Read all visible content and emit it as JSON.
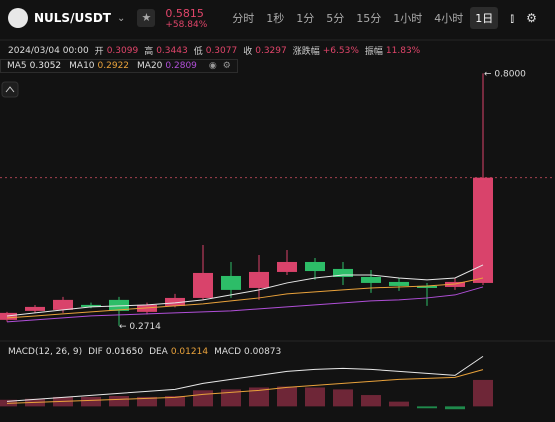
{
  "header": {
    "pair": "NULS/USDT",
    "price": 0.5815,
    "change": "+58.84%",
    "intervals": [
      "分时",
      "1秒",
      "1分",
      "5分",
      "15分",
      "1小时",
      "4小时",
      "1日"
    ],
    "active_interval": 7
  },
  "ohlc_row": {
    "date": "2024/03/04 00:00",
    "items": [
      {
        "label": "开",
        "value": 0.3099
      },
      {
        "label": "高",
        "value": 0.3443
      },
      {
        "label": "低",
        "value": 0.3077
      },
      {
        "label": "收",
        "value": 0.3297
      },
      {
        "label": "涨跌幅",
        "value": "+6.53%"
      },
      {
        "label": "振幅",
        "value": "11.83%"
      }
    ]
  },
  "chart_data": [
    {
      "type": "candlestick",
      "up_color": "#d9436b",
      "down_color": "#2dbd68",
      "ylim": [
        0.25,
        0.83
      ],
      "candles": [
        {
          "open": 0.2838,
          "high": 0.3005,
          "low": 0.28,
          "close": 0.2984
        },
        {
          "open": 0.3026,
          "high": 0.315,
          "low": 0.298,
          "close": 0.3109
        },
        {
          "open": 0.3047,
          "high": 0.3318,
          "low": 0.2984,
          "close": 0.3256
        },
        {
          "open": 0.3151,
          "high": 0.32,
          "low": 0.308,
          "close": 0.3109
        },
        {
          "open": 0.3256,
          "high": 0.3318,
          "low": 0.2714,
          "close": 0.3026
        },
        {
          "open": 0.3005,
          "high": 0.32,
          "low": 0.295,
          "close": 0.3151
        },
        {
          "open": 0.313,
          "high": 0.3381,
          "low": 0.31,
          "close": 0.3297
        },
        {
          "open": 0.3297,
          "high": 0.4405,
          "low": 0.3256,
          "close": 0.382
        },
        {
          "open": 0.3757,
          "high": 0.405,
          "low": 0.3297,
          "close": 0.3465
        },
        {
          "open": 0.3506,
          "high": 0.4196,
          "low": 0.3256,
          "close": 0.3841
        },
        {
          "open": 0.3841,
          "high": 0.4301,
          "low": 0.3778,
          "close": 0.405
        },
        {
          "open": 0.405,
          "high": 0.4133,
          "low": 0.3674,
          "close": 0.386
        },
        {
          "open": 0.3904,
          "high": 0.405,
          "low": 0.3569,
          "close": 0.3736
        },
        {
          "open": 0.3736,
          "high": 0.3883,
          "low": 0.3402,
          "close": 0.3611
        },
        {
          "open": 0.3632,
          "high": 0.3715,
          "low": 0.3444,
          "close": 0.3548
        },
        {
          "open": 0.3548,
          "high": 0.3611,
          "low": 0.313,
          "close": 0.3506
        },
        {
          "open": 0.3527,
          "high": 0.3715,
          "low": 0.3465,
          "close": 0.3632
        },
        {
          "open": 0.3611,
          "high": 0.8,
          "low": 0.3569,
          "close": 0.5815
        }
      ],
      "series": [
        {
          "name": "MA5",
          "color": "#e8e8e8",
          "current": 0.3052,
          "values": [
            0.292,
            0.2984,
            0.3047,
            0.3109,
            0.313,
            0.3151,
            0.3193,
            0.3256,
            0.336,
            0.3465,
            0.3611,
            0.3715,
            0.3778,
            0.3778,
            0.3715,
            0.3674,
            0.3715,
            0.3987
          ]
        },
        {
          "name": "MA10",
          "color": "#e9a23b",
          "current": 0.2922,
          "values": [
            0.288,
            0.292,
            0.2963,
            0.3005,
            0.3047,
            0.3089,
            0.313,
            0.3172,
            0.3235,
            0.3297,
            0.3381,
            0.3423,
            0.3465,
            0.3506,
            0.3527,
            0.3548,
            0.359,
            0.3715
          ]
        },
        {
          "name": "MA20",
          "color": "#b04fd8",
          "current": 0.2809,
          "values": [
            0.2796,
            0.2838,
            0.288,
            0.2921,
            0.2942,
            0.2963,
            0.2984,
            0.3005,
            0.3026,
            0.3068,
            0.3109,
            0.3151,
            0.3193,
            0.3235,
            0.3256,
            0.3297,
            0.336,
            0.3527
          ]
        }
      ],
      "annotations": [
        {
          "text": "← 0.8000",
          "value": 0.8
        },
        {
          "text": "← 0.2714",
          "value": 0.2714
        }
      ]
    },
    {
      "type": "macd",
      "title": "MACD(12, 26, 9)",
      "ylim": [
        -0.0045,
        0.0196
      ],
      "series": [
        {
          "name": "DIF",
          "color": "#e8e8e8",
          "current": "0.01650",
          "values": [
            0.00165,
            0.00231,
            0.00297,
            0.00363,
            0.00429,
            0.00495,
            0.00561,
            0.00759,
            0.00891,
            0.01023,
            0.01155,
            0.01221,
            0.01254,
            0.01221,
            0.01155,
            0.01089,
            0.01023,
            0.0165
          ]
        },
        {
          "name": "DEA",
          "color": "#e9a23b",
          "current": 0.01214,
          "values": [
            0.00099,
            0.00132,
            0.00165,
            0.00198,
            0.00231,
            0.00264,
            0.00297,
            0.00396,
            0.00462,
            0.00528,
            0.00627,
            0.00693,
            0.00759,
            0.00825,
            0.00891,
            0.00924,
            0.00957,
            0.01214
          ]
        }
      ],
      "histogram": {
        "name": "MACD",
        "current": 0.00873,
        "up_color": "#6e2637",
        "down_color": "#1f8a4c",
        "values": [
          0.00218,
          0.0025,
          0.00312,
          0.00312,
          0.00343,
          0.00312,
          0.00343,
          0.0053,
          0.0056,
          0.00624,
          0.00655,
          0.00624,
          0.0056,
          0.00374,
          0.00156,
          -0.00062,
          -0.00094,
          0.00873
        ]
      }
    }
  ]
}
